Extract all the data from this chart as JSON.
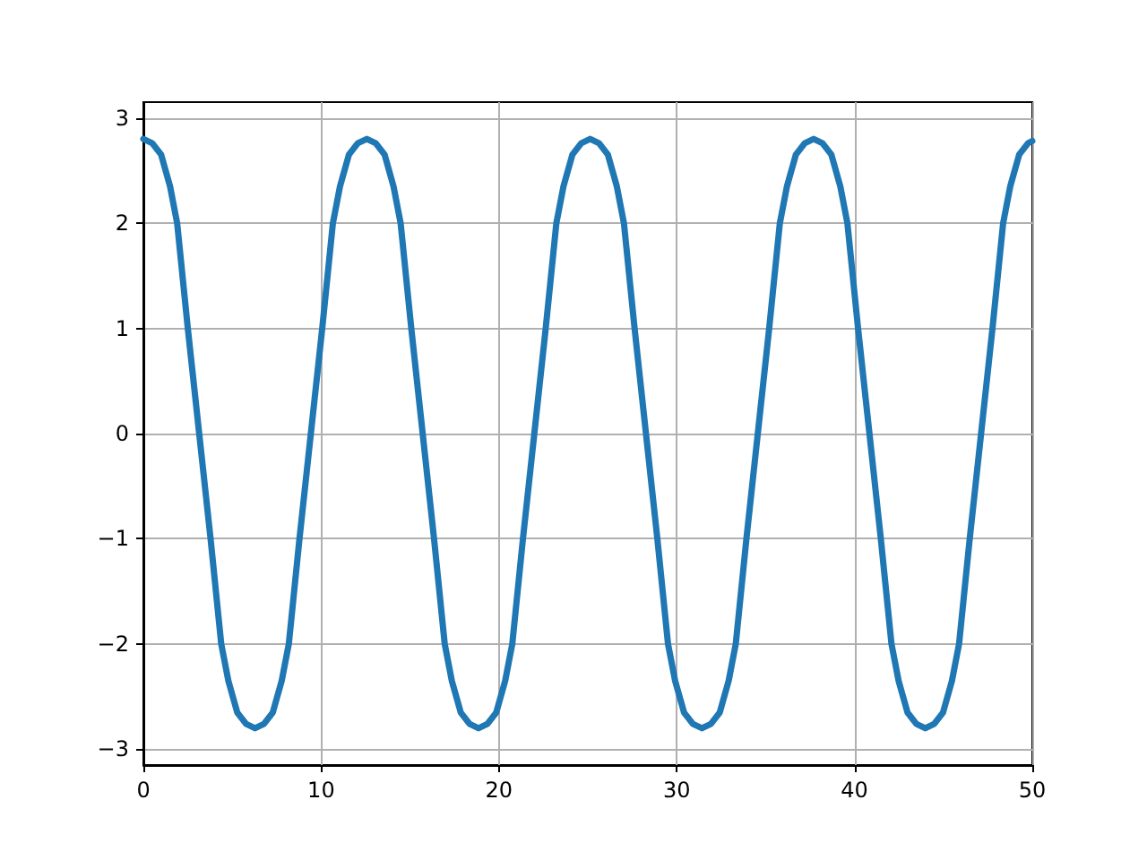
{
  "chart_data": {
    "type": "line",
    "xlim": [
      0,
      50
    ],
    "ylim": [
      -3.15,
      3.15
    ],
    "xticks": [
      0,
      10,
      20,
      30,
      40,
      50
    ],
    "yticks": [
      -3,
      -2,
      -1,
      0,
      1,
      2,
      3
    ],
    "grid": true,
    "marker": "none",
    "line_style": "solid",
    "series": [
      {
        "color": "#1f77b4",
        "x": [
          0,
          0.5,
          1,
          1.5,
          1.9,
          2.5,
          3.14,
          3.78,
          4.38,
          4.78,
          5.28,
          5.78,
          6.28,
          6.78,
          7.28,
          7.78,
          8.18,
          8.78,
          9.42,
          10.06,
          10.66,
          11.06,
          11.56,
          12.06,
          12.57,
          13.07,
          13.57,
          14.07,
          14.47,
          15.07,
          15.71,
          16.35,
          16.95,
          17.35,
          17.85,
          18.35,
          18.85,
          19.35,
          19.85,
          20.35,
          20.75,
          21.35,
          21.99,
          22.63,
          23.23,
          23.63,
          24.13,
          24.63,
          25.13,
          25.63,
          26.13,
          26.63,
          27.03,
          27.63,
          28.27,
          28.91,
          29.51,
          29.91,
          30.41,
          30.91,
          31.42,
          31.92,
          32.42,
          32.92,
          33.32,
          33.92,
          34.56,
          35.2,
          35.8,
          36.2,
          36.7,
          37.2,
          37.7,
          38.2,
          38.7,
          39.2,
          39.6,
          40.2,
          40.84,
          41.48,
          42.08,
          42.48,
          42.98,
          43.48,
          43.98,
          44.48,
          44.98,
          45.48,
          45.88,
          46.48,
          47.12,
          47.76,
          48.36,
          48.76,
          49.26,
          49.76,
          50
        ],
        "values": [
          2.8,
          2.76,
          2.65,
          2.35,
          2,
          1,
          0,
          -1,
          -2,
          -2.35,
          -2.65,
          -2.76,
          -2.8,
          -2.76,
          -2.65,
          -2.35,
          -2,
          -1,
          0,
          1,
          2,
          2.35,
          2.65,
          2.76,
          2.8,
          2.76,
          2.65,
          2.35,
          2,
          1,
          0,
          -1,
          -2,
          -2.35,
          -2.65,
          -2.76,
          -2.8,
          -2.76,
          -2.65,
          -2.35,
          -2,
          -1,
          0,
          1,
          2,
          2.35,
          2.65,
          2.76,
          2.8,
          2.76,
          2.65,
          2.35,
          2,
          1,
          0,
          -1,
          -2,
          -2.35,
          -2.65,
          -2.76,
          -2.8,
          -2.76,
          -2.65,
          -2.35,
          -2,
          -1,
          0,
          1,
          2,
          2.35,
          2.65,
          2.76,
          2.8,
          2.76,
          2.65,
          2.35,
          2,
          1,
          0,
          -1,
          -2,
          -2.35,
          -2.65,
          -2.76,
          -2.8,
          -2.76,
          -2.65,
          -2.35,
          -2,
          -1,
          0,
          1,
          2,
          2.35,
          2.65,
          2.76,
          2.78
        ]
      }
    ]
  }
}
